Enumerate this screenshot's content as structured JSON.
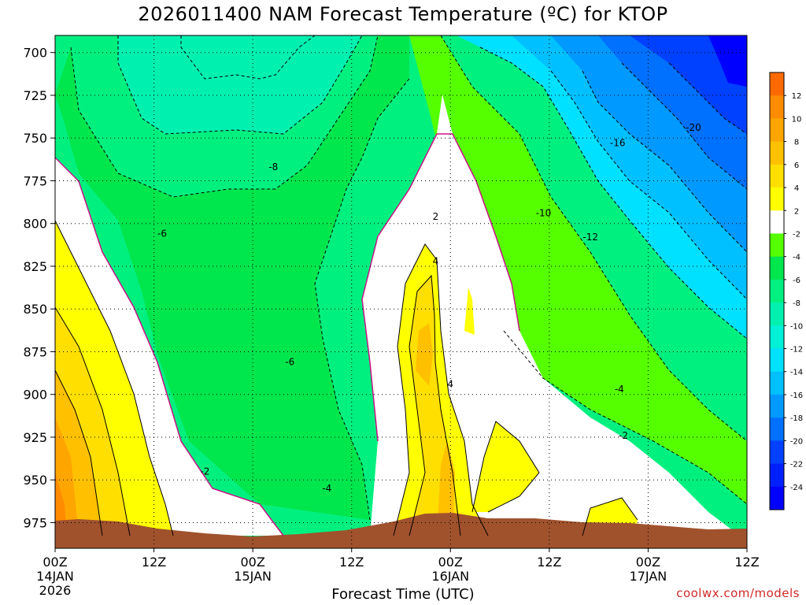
{
  "chart_data": {
    "type": "heatmap",
    "title": "2026011400 NAM Forecast Temperature (ºC) for KTOP",
    "xlabel": "Forecast Time (UTC)",
    "ylabel": "",
    "credit": "coolwx.com/models",
    "x_unit": "forecast hour",
    "xlim": [
      0,
      84
    ],
    "ylim": [
      990,
      690
    ],
    "y_scale": "pressure (hPa), increasing downward",
    "grid": true,
    "x_ticks": [
      {
        "hour": 0,
        "label": "00Z",
        "sub1": "14JAN",
        "sub2": "2026"
      },
      {
        "hour": 12,
        "label": "12Z",
        "sub1": "",
        "sub2": ""
      },
      {
        "hour": 24,
        "label": "00Z",
        "sub1": "15JAN",
        "sub2": ""
      },
      {
        "hour": 36,
        "label": "12Z",
        "sub1": "",
        "sub2": ""
      },
      {
        "hour": 48,
        "label": "00Z",
        "sub1": "16JAN",
        "sub2": ""
      },
      {
        "hour": 60,
        "label": "12Z",
        "sub1": "",
        "sub2": ""
      },
      {
        "hour": 72,
        "label": "00Z",
        "sub1": "17JAN",
        "sub2": ""
      },
      {
        "hour": 84,
        "label": "12Z",
        "sub1": "",
        "sub2": ""
      }
    ],
    "y_ticks": [
      700,
      725,
      750,
      775,
      800,
      825,
      850,
      875,
      900,
      925,
      950,
      975
    ],
    "colorbar": {
      "labels": [
        "12",
        "10",
        "8",
        "6",
        "4",
        "2",
        "-2",
        "-4",
        "-6",
        "-8",
        "-10",
        "-12",
        "-14",
        "-16",
        "-18",
        "-20",
        "-22",
        "-24"
      ],
      "colors": [
        "#ff6a00",
        "#ff8c00",
        "#ffa500",
        "#ffc000",
        "#ffdf00",
        "#ffff00",
        "#ffffff",
        "#55ff00",
        "#00e64d",
        "#00f080",
        "#00f0b0",
        "#00f0d8",
        "#00e0ff",
        "#00c0ff",
        "#0099ff",
        "#0070ff",
        "#0040ff",
        "#0020ff",
        "#0000ff"
      ]
    },
    "contour_labels": [
      {
        "text": "-8",
        "hour": 26.5,
        "p": 767
      },
      {
        "text": "-6",
        "hour": 13,
        "p": 806
      },
      {
        "text": "-6",
        "hour": 28.5,
        "p": 881
      },
      {
        "text": "-4",
        "hour": 33,
        "p": 955
      },
      {
        "text": "-2",
        "hour": 18.2,
        "p": 945
      },
      {
        "text": "2",
        "hour": 46.2,
        "p": 796
      },
      {
        "text": "4",
        "hour": 46.2,
        "p": 822
      },
      {
        "text": "4",
        "hour": 48,
        "p": 894
      },
      {
        "text": "-10",
        "hour": 59.3,
        "p": 794
      },
      {
        "text": "-12",
        "hour": 65,
        "p": 808
      },
      {
        "text": "-16",
        "hour": 68.3,
        "p": 753
      },
      {
        "text": "-20",
        "hour": 77.5,
        "p": 744
      },
      {
        "text": "-4",
        "hour": 68.5,
        "p": 897
      },
      {
        "text": "-2",
        "hour": 69,
        "p": 924
      }
    ]
  }
}
